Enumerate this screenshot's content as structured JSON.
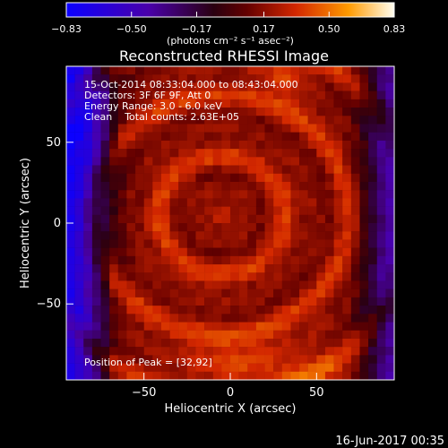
{
  "chart_data": {
    "type": "heatmap",
    "title": "Reconstructed RHESSI Image",
    "xlabel": "Heliocentric X (arcsec)",
    "ylabel": "Heliocentric Y (arcsec)",
    "xlim": [
      -95,
      95
    ],
    "ylim": [
      -97,
      97
    ],
    "x_ticks": [
      -50,
      0,
      50
    ],
    "y_ticks": [
      -50,
      0,
      50
    ],
    "x_tick_labels": [
      "−50",
      "0",
      "50"
    ],
    "y_tick_labels": [
      "−50",
      "0",
      "50"
    ],
    "colorbar": {
      "range": [
        -0.83,
        0.83
      ],
      "tick_values": [
        -0.83,
        -0.5,
        -0.17,
        0.17,
        0.5,
        0.83
      ],
      "tick_labels": [
        "−0.83",
        "−0.50",
        "−0.17",
        "0.17",
        "0.50",
        "0.83"
      ],
      "unit_label": "(photons cm⁻² s⁻¹ asec⁻²)"
    },
    "annotations": {
      "time_range": "15-Oct-2014 08:33:04.000 to 08:43:04.000",
      "detectors": "Detectors: 3F 6F 9F, Att 0",
      "energy": "Energy Range: 3.0 - 6.0 keV",
      "clean": "Clean    Total counts: 2.63E+05",
      "peak": "Position of Peak = [32,92]"
    },
    "timestamp": "16-Jun-2017 00:35",
    "heatmap": {
      "x_range": [
        -95,
        95
      ],
      "y_range": [
        -97,
        97
      ],
      "nx": 38,
      "ny": 38,
      "peak": [
        32,
        92
      ],
      "notes": "Ring/ripple artifact pattern centered near (-5, 5); negative (purple) regions along left and right edges; high values (yellow) near top and bottom."
    }
  }
}
